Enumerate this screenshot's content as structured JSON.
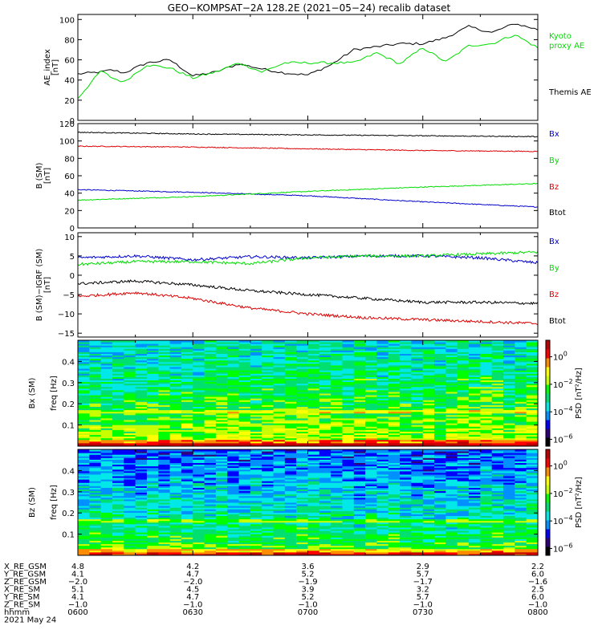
{
  "title": "GEO−KOMPSAT−2A 128.2E (2021−05−24) recalib dataset",
  "time_axis": {
    "tick_labels": [
      "0600",
      "0630",
      "0700",
      "0730",
      "0800"
    ],
    "date_label": "2021 May 24",
    "ephemeris": [
      {
        "name": "X_RE_GSM",
        "values": [
          "4.8",
          "4.2",
          "3.6",
          "2.9",
          "2.2"
        ]
      },
      {
        "name": "Y_RE_GSM",
        "values": [
          "4.1",
          "4.7",
          "5.2",
          "5.7",
          "6.0"
        ]
      },
      {
        "name": "Z_RE_GSM",
        "values": [
          "−2.0",
          "−2.0",
          "−1.9",
          "−1.7",
          "−1.6"
        ]
      },
      {
        "name": "X_RE_SM",
        "values": [
          "5.1",
          "4.5",
          "3.9",
          "3.2",
          "2.5"
        ]
      },
      {
        "name": "Y_RE_SM",
        "values": [
          "4.1",
          "4.7",
          "5.2",
          "5.7",
          "6.0"
        ]
      },
      {
        "name": "Z_RE_SM",
        "values": [
          "−1.0",
          "−1.0",
          "−1.0",
          "−1.0",
          "−1.0"
        ]
      },
      {
        "name": "hhmm",
        "values": [
          "0600",
          "0630",
          "0700",
          "0730",
          "0800"
        ]
      }
    ]
  },
  "colorbar": {
    "label": "PSD [nT²/Hz]",
    "ticks": [
      {
        "mant": "10",
        "exp": "0",
        "value": 0
      },
      {
        "mant": "10",
        "exp": "−2",
        "value": -2
      },
      {
        "mant": "10",
        "exp": "−4",
        "value": -4
      },
      {
        "mant": "10",
        "exp": "−6",
        "value": -6
      }
    ],
    "range": [
      -6.5,
      1.2
    ],
    "colors": [
      "#000000",
      "#30007a",
      "#0000ff",
      "#0090ff",
      "#00e8e8",
      "#00e070",
      "#00ff00",
      "#c8ff00",
      "#ffff00",
      "#ff8c00",
      "#ff0000",
      "#c00000"
    ]
  },
  "chart_data": [
    {
      "type": "line",
      "panel": "AE index",
      "ylabel": "AE_index",
      "yunit": "[nT]",
      "ylim": [
        0,
        105
      ],
      "yticks": [
        0,
        20,
        40,
        60,
        80,
        100
      ],
      "x_hours": [
        6.0,
        6.1,
        6.15,
        6.2,
        6.3,
        6.4,
        6.5,
        6.6,
        6.7,
        6.8,
        6.9,
        7.0,
        7.1,
        7.2,
        7.3,
        7.4,
        7.5,
        7.6,
        7.7,
        7.8,
        7.9,
        8.0
      ],
      "series": [
        {
          "name": "Themis AE",
          "color": "#000000",
          "values": [
            46,
            48,
            50,
            47,
            57,
            60,
            44,
            48,
            56,
            51,
            47,
            45,
            55,
            70,
            73,
            76,
            76,
            82,
            93,
            87,
            96,
            90
          ]
        },
        {
          "name": "Kyoto proxy AE",
          "color": "#00dd00",
          "values": [
            22,
            49,
            42,
            38,
            55,
            52,
            42,
            48,
            57,
            48,
            57,
            57,
            57,
            57,
            67,
            56,
            72,
            58,
            74,
            76,
            85,
            72
          ]
        }
      ]
    },
    {
      "type": "line",
      "panel": "B (SM)",
      "ylabel": "B (SM)",
      "yunit": "[nT]",
      "ylim": [
        0,
        120
      ],
      "yticks": [
        0,
        20,
        40,
        60,
        80,
        100,
        120
      ],
      "x_hours": [
        6.0,
        6.5,
        7.0,
        7.5,
        8.0
      ],
      "series": [
        {
          "name": "Bx",
          "color": "#0000cc",
          "values": [
            44,
            41,
            37,
            30,
            24
          ]
        },
        {
          "name": "By",
          "color": "#00dd00",
          "values": [
            32,
            36,
            42,
            47,
            51
          ]
        },
        {
          "name": "Bz",
          "color": "#dd0000",
          "values": [
            94,
            93,
            91,
            89,
            88
          ]
        },
        {
          "name": "Btot",
          "color": "#000000",
          "values": [
            110,
            108,
            107,
            106,
            105
          ]
        }
      ]
    },
    {
      "type": "line",
      "panel": "B (SM)-IGRF",
      "ylabel": "B (SM)−IGRF (SM)",
      "yunit": "[nT]",
      "ylim": [
        -16,
        11
      ],
      "yticks": [
        -15,
        -10,
        -5,
        0,
        5,
        10
      ],
      "x_hours": [
        6.0,
        6.25,
        6.5,
        6.75,
        7.0,
        7.25,
        7.5,
        7.75,
        8.0
      ],
      "series": [
        {
          "name": "Bx",
          "color": "#0000cc",
          "values": [
            4.5,
            5.0,
            4.0,
            4.8,
            4.5,
            5.0,
            5.0,
            4.5,
            3.2
          ]
        },
        {
          "name": "By",
          "color": "#00dd00",
          "values": [
            2.8,
            3.5,
            3.5,
            3.0,
            4.5,
            5.0,
            5.0,
            5.5,
            6.0
          ]
        },
        {
          "name": "Bz",
          "color": "#dd0000",
          "values": [
            -5.5,
            -4.5,
            -6.0,
            -8.5,
            -10.0,
            -11.0,
            -11.5,
            -12.0,
            -12.5
          ]
        },
        {
          "name": "Btot",
          "color": "#000000",
          "values": [
            -2.2,
            -1.5,
            -2.5,
            -4.0,
            -5.0,
            -6.0,
            -7.0,
            -7.0,
            -7.3
          ]
        }
      ]
    },
    {
      "type": "heatmap",
      "panel": "Bx (SM) spectrogram",
      "ylabel": "Bx (SM)",
      "yunit": "freq [Hz]",
      "ylim": [
        0,
        0.5
      ],
      "yticks": [
        0.1,
        0.2,
        0.3,
        0.4
      ],
      "value_label": "log10 PSD [nT²/Hz]",
      "typical_log_psd_low_freq": -1.0,
      "typical_log_psd_high_freq": -3.5
    },
    {
      "type": "heatmap",
      "panel": "Bz (SM) spectrogram",
      "ylabel": "Bz (SM)",
      "yunit": "freq [Hz]",
      "ylim": [
        0,
        0.5
      ],
      "yticks": [
        0.1,
        0.2,
        0.3,
        0.4
      ],
      "value_label": "log10 PSD [nT²/Hz]",
      "typical_log_psd_low_freq": -1.5,
      "typical_log_psd_high_freq": -4.5
    }
  ],
  "legends": [
    [
      {
        "label": "Kyoto\nproxy AE",
        "color": "#00dd00"
      },
      {
        "label": "Themis AE",
        "color": "#000000"
      }
    ],
    [
      {
        "label": "Bx",
        "color": "#0000cc"
      },
      {
        "label": "By",
        "color": "#00dd00"
      },
      {
        "label": "Bz",
        "color": "#dd0000"
      },
      {
        "label": "Btot",
        "color": "#000000"
      }
    ],
    [
      {
        "label": "Bx",
        "color": "#0000cc"
      },
      {
        "label": "By",
        "color": "#00dd00"
      },
      {
        "label": "Bz",
        "color": "#dd0000"
      },
      {
        "label": "Btot",
        "color": "#000000"
      }
    ]
  ]
}
